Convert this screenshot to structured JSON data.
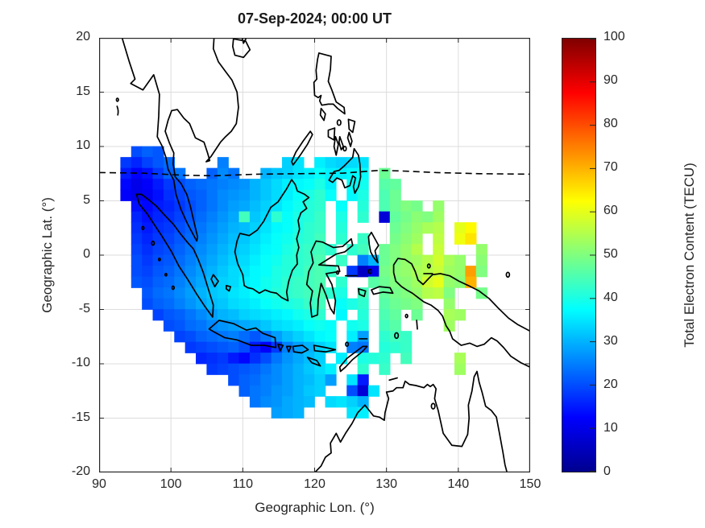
{
  "title": "07-Sep-2024; 00:00 UT",
  "axes": {
    "xlabel": "Geographic Lon. (°)",
    "ylabel": "Geographic Lat. (°)",
    "xlim": [
      90,
      150
    ],
    "ylim": [
      -20,
      20
    ],
    "xticks": [
      90,
      100,
      110,
      120,
      130,
      140,
      150
    ],
    "yticks": [
      20,
      15,
      10,
      5,
      0,
      -5,
      -10,
      -15,
      -20
    ],
    "grid": true
  },
  "colorbar": {
    "label": "Total Electron Content (TECU)",
    "min": 0,
    "max": 100,
    "ticks": [
      0,
      10,
      20,
      30,
      40,
      50,
      60,
      70,
      80,
      90,
      100
    ],
    "colormap": "jet",
    "stops": [
      {
        "t": 0.0,
        "c": "#00008F"
      },
      {
        "t": 0.125,
        "c": "#0000FF"
      },
      {
        "t": 0.375,
        "c": "#00FFFF"
      },
      {
        "t": 0.625,
        "c": "#FFFF00"
      },
      {
        "t": 0.875,
        "c": "#FF0000"
      },
      {
        "t": 1.0,
        "c": "#800000"
      }
    ]
  },
  "chart_data": {
    "type": "heatmap",
    "x_name": "geographic_longitude_deg",
    "y_name": "geographic_latitude_deg",
    "value_name": "total_electron_content_TECU",
    "value_range": [
      0,
      100
    ],
    "cell": {
      "lon": 1.5,
      "lat": 1.0
    },
    "lon_start": 93.75,
    "lon_step": 1.5,
    "note_empty_token": ".",
    "rows": [
      {
        "lat": 9.5,
        "v": ". 20 22 21 . . . . . . . . . . . . . . . . . . . . . . . . . . . . . . . ."
      },
      {
        "lat": 8.5,
        "v": "18 16 19 21 23 . . . . 25 . . . . . 33 35 . 36 34 33 34 35 . . . . . . . . . . . . ."
      },
      {
        "lat": 7.5,
        "v": "15 12 14 18 22 24 . . 22 26 24 . . 30 32 33 35 36 38 36 36 37 38 . 48 . . . . . . . . . . ."
      },
      {
        "lat": 6.5,
        "v": "13 10 12 15 18 20 22 23 24 25 26 27 30 32 34 36 37 38 40 36 . 38 39 . 46 47 . . . . . . . . . ."
      },
      {
        "lat": 5.5,
        "v": "12 10 11 14 17 19 21 22 24 26 27 28 30 32 34 36 38 40 42 38 . 37 40 . 45 48 . . . . . . . . . ."
      },
      {
        "lat": 4.5,
        "v": ". 14 13 15 16 18 20 22 24 26 28 29 31 33 35 37 39 41 42 . 38 . 41 . 45 48 50 49 . 52 . . . . . ."
      },
      {
        "lat": 3.5,
        "v": ". 16 14 16 17 19 21 23 25 27 29 44 32 34 42 38 40 41 43 . 40 . 42 . 8 47 49 51 50 53 . . . . . ."
      },
      {
        "lat": 2.5,
        "v": ". 17 15 17 18 20 22 24 26 28 30 31 33 35 37 38 40 42 43 . 41 . . . . 48 50 52 54 55 . 60 63 . . ."
      },
      {
        "lat": 1.5,
        "v": ". 18 16 18 19 21 23 25 27 29 31 32 34 36 38 39 41 42 44 . 42 . 43 . . 49 51 53 . 56 . 61 65 . . ."
      },
      {
        "lat": 0.5,
        "v": ". 19 17 19 20 22 24 26 28 30 32 33 35 37 38 40 42 43 44 42 . 42 44 . 48 50 52 55 . 57 . . . 52 . ."
      },
      {
        "lat": -0.5,
        "v": ". 20 18 20 21 23 25 27 29 31 33 34 36 38 39 41 42 43 45 . 43 . 25 30 48 50 52 53 55 58 54 52 . 51 . ."
      },
      {
        "lat": -1.5,
        "v": ". 20 19 21 22 24 26 28 30 32 34 35 37 38 40 41 42 44 45 43 . 18 6 10 49 51 52 54 55 57 53 52 72 50 . ."
      },
      {
        "lat": -2.5,
        "v": ". 21 20 22 23 25 27 29 31 33 34 36 37 39 40 42 43 44 45 . 42 . . 46 48 50 51 53 58 60 52 51 70 . . ."
      },
      {
        "lat": -3.5,
        "v": ". . 21 23 24 26 28 30 32 33 35 36 38 39 41 42 43 44 45 42 40 . 44 . 47 49 50 52 55 56 50 . . 49 . ."
      },
      {
        "lat": -4.5,
        "v": ". . 20 22 23 25 27 29 31 32 34 35 36 38 39 40 41 43 44 . 38 40 42 . 46 48 49 50 . . 52 . . . . ."
      },
      {
        "lat": -5.5,
        "v": ". . . 19 21 22 24 26 28 30 31 33 34 35 36 37 39 40 42 . 37 . 41 . 45 47 . 48 . . 54 53 . . . ."
      },
      {
        "lat": -6.5,
        "v": ". . . . 20 21 23 24 26 27 28 29 30 32 34 35 36 38 39 38 . 39 40 . 44 46 . . . . 53 . . . . ."
      },
      {
        "lat": -7.5,
        "v": ". . . . . 19 20 22 23 24 25 23 21 24 28 31 33 35 37 38 . 36 28 . 42 44 43 . . . . . . . . ."
      },
      {
        "lat": -8.5,
        "v": ". . . . . . 18 19 20 21 22 20 15 12 18 25 28 30 33 35 . 25 24 . 41 42 43 . . . . . . . . ."
      },
      {
        "lat": -9.5,
        "v": ". . . . . . . 16 17 18 15 13 17 20 24 27 29 31 33 . 36 . 40 41 42 . 44 . . . . 54 . . . ."
      },
      {
        "lat": -10.5,
        "v": ". . . . . . . . 18 19 20 21 22 24 26 28 30 32 34 36 . . 42 . 43 . . . . . . 53 . . . ."
      },
      {
        "lat": -11.5,
        "v": ". . . . . . . . . . 20 22 23 25 26 28 30 31 33 28 . 35 15 . . . . . . . . . . . . ."
      },
      {
        "lat": -12.5,
        "v": ". . . . . . . . . . . 22 24 25 27 28 30 32 33 . . 20 8 35 . . . . . . . . . . . ."
      },
      {
        "lat": -13.5,
        "v": ". . . . . . . . . . . . 24 26 27 29 30 31 . 34 35 33 30 . . . . . . . . . . . . ."
      },
      {
        "lat": -14.5,
        "v": ". . . . . . . . . . . . . . 28 29 30 . . . . 35 36 . . . . . . . . . . . . ."
      }
    ],
    "dashed_line": {
      "name": "magnetic-equator-dashed-line",
      "points": [
        [
          90,
          7.6
        ],
        [
          96,
          7.55
        ],
        [
          102,
          7.35
        ],
        [
          106,
          7.3
        ],
        [
          112,
          7.45
        ],
        [
          118,
          7.5
        ],
        [
          124,
          7.55
        ],
        [
          129,
          7.8
        ],
        [
          132,
          7.75
        ],
        [
          137,
          7.6
        ],
        [
          143,
          7.5
        ],
        [
          150,
          7.45
        ]
      ]
    }
  }
}
